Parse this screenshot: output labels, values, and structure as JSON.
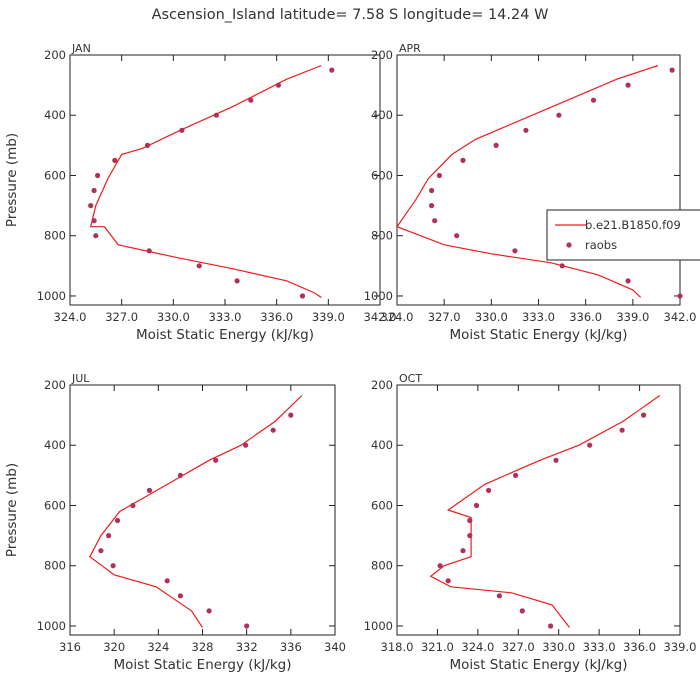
{
  "title": "Ascension_Island   latitude= 7.58 S longitude= 14.24 W",
  "colors": {
    "model_line": "#ee1c1c",
    "obs_marker": "#b0305a",
    "frame": "#222222",
    "text": "#333333"
  },
  "legend": {
    "panel_index": 1,
    "entries": [
      "b.e21.B1850.f09",
      "raobs"
    ]
  },
  "chart_data": [
    {
      "type": "line",
      "panel_label": "JAN",
      "xlabel": "Moist Static Energy (kJ/kg)",
      "ylabel": "Pressure (mb)",
      "xlim": [
        324.0,
        342.0
      ],
      "ylim": [
        1030,
        200
      ],
      "y_inverted": true,
      "xticks": [
        "324.0",
        "327.0",
        "330.0",
        "333.0",
        "336.0",
        "339.0",
        "342.0"
      ],
      "xtick_values": [
        324,
        327,
        330,
        333,
        336,
        339,
        342
      ],
      "yticks": [
        "200",
        "400",
        "600",
        "800",
        "1000"
      ],
      "ytick_values": [
        200,
        400,
        600,
        800,
        1000
      ],
      "series": [
        {
          "name": "b.e21.B1850.f09",
          "style": "line",
          "points": [
            [
              338.6,
              235
            ],
            [
              336.6,
              280
            ],
            [
              333.5,
              370
            ],
            [
              330.4,
              450
            ],
            [
              328.2,
              510
            ],
            [
              327.0,
              530
            ],
            [
              326.2,
              610
            ],
            [
              325.5,
              700
            ],
            [
              325.2,
              770
            ],
            [
              326.0,
              770
            ],
            [
              326.8,
              830
            ],
            [
              330.0,
              870
            ],
            [
              333.5,
              910
            ],
            [
              336.6,
              950
            ],
            [
              338.2,
              990
            ],
            [
              338.6,
              1005
            ]
          ]
        },
        {
          "name": "raobs",
          "style": "marker",
          "points": [
            [
              339.2,
              250
            ],
            [
              336.1,
              300
            ],
            [
              334.5,
              350
            ],
            [
              332.5,
              400
            ],
            [
              330.5,
              450
            ],
            [
              328.5,
              500
            ],
            [
              326.6,
              550
            ],
            [
              325.6,
              600
            ],
            [
              325.4,
              650
            ],
            [
              325.2,
              700
            ],
            [
              325.4,
              750
            ],
            [
              325.5,
              800
            ],
            [
              328.6,
              850
            ],
            [
              331.5,
              900
            ],
            [
              333.7,
              950
            ],
            [
              337.5,
              1000
            ]
          ]
        }
      ]
    },
    {
      "type": "line",
      "panel_label": "APR",
      "xlabel": "Moist Static Energy (kJ/kg)",
      "ylabel": "",
      "xlim": [
        324.0,
        342.0
      ],
      "ylim": [
        1030,
        200
      ],
      "y_inverted": true,
      "xticks": [
        "324.0",
        "327.0",
        "330.0",
        "333.0",
        "336.0",
        "339.0",
        "342.0"
      ],
      "xtick_values": [
        324,
        327,
        330,
        333,
        336,
        339,
        342
      ],
      "yticks": [
        "200",
        "400",
        "600",
        "800",
        "1000"
      ],
      "ytick_values": [
        200,
        400,
        600,
        800,
        1000
      ],
      "series": [
        {
          "name": "b.e21.B1850.f09",
          "style": "line",
          "points": [
            [
              340.6,
              235
            ],
            [
              338.0,
              280
            ],
            [
              333.5,
              380
            ],
            [
              329.0,
              480
            ],
            [
              327.5,
              530
            ],
            [
              326.0,
              610
            ],
            [
              325.2,
              680
            ],
            [
              324.0,
              770
            ],
            [
              325.5,
              800
            ],
            [
              327.0,
              830
            ],
            [
              330.0,
              860
            ],
            [
              333.8,
              890
            ],
            [
              336.8,
              930
            ],
            [
              339.0,
              980
            ],
            [
              339.5,
              1005
            ]
          ]
        },
        {
          "name": "raobs",
          "style": "marker",
          "points": [
            [
              341.5,
              250
            ],
            [
              338.7,
              300
            ],
            [
              336.5,
              350
            ],
            [
              334.3,
              400
            ],
            [
              332.2,
              450
            ],
            [
              330.3,
              500
            ],
            [
              328.2,
              550
            ],
            [
              326.7,
              600
            ],
            [
              326.2,
              650
            ],
            [
              326.2,
              700
            ],
            [
              326.4,
              750
            ],
            [
              327.8,
              800
            ],
            [
              331.5,
              850
            ],
            [
              334.5,
              900
            ],
            [
              338.7,
              950
            ],
            [
              342.0,
              1000
            ]
          ]
        }
      ]
    },
    {
      "type": "line",
      "panel_label": "JUL",
      "xlabel": "Moist Static Energy (kJ/kg)",
      "ylabel": "Pressure (mb)",
      "xlim": [
        316,
        340
      ],
      "ylim": [
        1030,
        200
      ],
      "y_inverted": true,
      "xticks": [
        "316",
        "320",
        "324",
        "328",
        "332",
        "336",
        "340"
      ],
      "xtick_values": [
        316,
        320,
        324,
        328,
        332,
        336,
        340
      ],
      "yticks": [
        "200",
        "400",
        "600",
        "800",
        "1000"
      ],
      "ytick_values": [
        200,
        400,
        600,
        800,
        1000
      ],
      "series": [
        {
          "name": "b.e21.B1850.f09",
          "style": "line",
          "points": [
            [
              337.0,
              235
            ],
            [
              334.6,
              320
            ],
            [
              331.5,
              400
            ],
            [
              328.6,
              450
            ],
            [
              324.8,
              530
            ],
            [
              320.5,
              620
            ],
            [
              318.8,
              700
            ],
            [
              317.8,
              770
            ],
            [
              320.0,
              830
            ],
            [
              323.8,
              870
            ],
            [
              327.0,
              950
            ],
            [
              328.0,
              1005
            ]
          ]
        },
        {
          "name": "raobs",
          "style": "marker",
          "points": [
            [
              336.0,
              300
            ],
            [
              334.4,
              350
            ],
            [
              331.9,
              400
            ],
            [
              329.2,
              450
            ],
            [
              326.0,
              500
            ],
            [
              323.2,
              550
            ],
            [
              321.7,
              600
            ],
            [
              320.3,
              650
            ],
            [
              319.5,
              700
            ],
            [
              318.8,
              750
            ],
            [
              319.9,
              800
            ],
            [
              324.8,
              850
            ],
            [
              326.0,
              900
            ],
            [
              328.6,
              950
            ],
            [
              332.0,
              1000
            ]
          ]
        }
      ]
    },
    {
      "type": "line",
      "panel_label": "OCT",
      "xlabel": "Moist Static Energy (kJ/kg)",
      "ylabel": "",
      "xlim": [
        318.0,
        339.0
      ],
      "ylim": [
        1030,
        200
      ],
      "y_inverted": true,
      "xticks": [
        "318.0",
        "321.0",
        "324.0",
        "327.0",
        "330.0",
        "333.0",
        "336.0",
        "339.0"
      ],
      "xtick_values": [
        318,
        321,
        324,
        327,
        330,
        333,
        336,
        339
      ],
      "yticks": [
        "200",
        "400",
        "600",
        "800",
        "1000"
      ],
      "ytick_values": [
        200,
        400,
        600,
        800,
        1000
      ],
      "series": [
        {
          "name": "b.e21.B1850.f09",
          "style": "line",
          "points": [
            [
              337.5,
              235
            ],
            [
              334.8,
              320
            ],
            [
              331.5,
              400
            ],
            [
              328.6,
              450
            ],
            [
              324.5,
              530
            ],
            [
              321.8,
              615
            ],
            [
              323.5,
              640
            ],
            [
              323.5,
              770
            ],
            [
              321.5,
              800
            ],
            [
              320.5,
              835
            ],
            [
              322.0,
              870
            ],
            [
              326.5,
              890
            ],
            [
              329.5,
              930
            ],
            [
              330.8,
              1005
            ]
          ]
        },
        {
          "name": "raobs",
          "style": "marker",
          "points": [
            [
              336.3,
              300
            ],
            [
              334.7,
              350
            ],
            [
              332.3,
              400
            ],
            [
              329.8,
              450
            ],
            [
              326.8,
              500
            ],
            [
              324.8,
              550
            ],
            [
              323.9,
              600
            ],
            [
              323.4,
              650
            ],
            [
              323.4,
              700
            ],
            [
              322.9,
              750
            ],
            [
              321.2,
              800
            ],
            [
              321.8,
              850
            ],
            [
              325.6,
              900
            ],
            [
              327.3,
              950
            ],
            [
              329.4,
              1000
            ]
          ]
        }
      ]
    }
  ]
}
